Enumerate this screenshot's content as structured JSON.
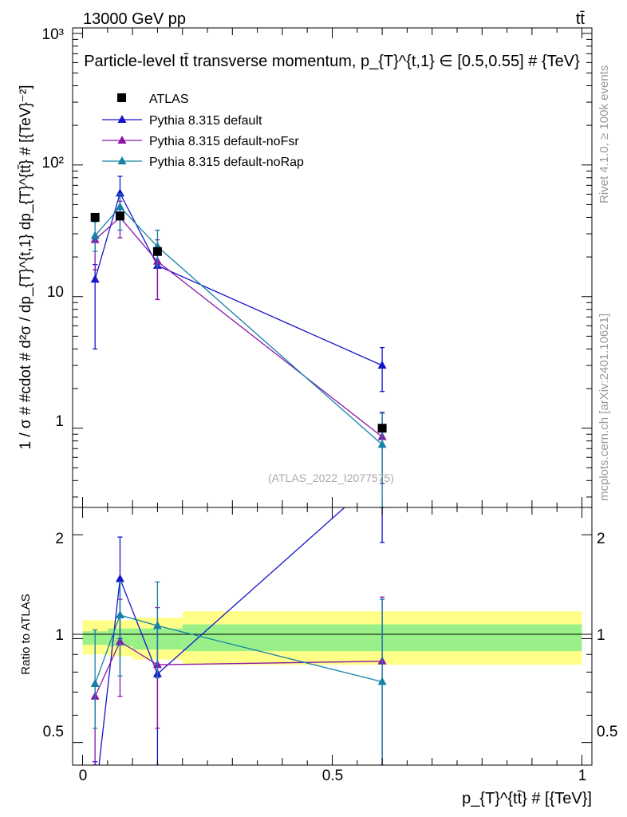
{
  "header": {
    "energy_label": "13000 GeV pp",
    "process_label": "tt̄",
    "plot_title": "Particle-level tt̄ transverse momentum, p_{T}^{t,1} ∈ [0.5,0.55] # {TeV}"
  },
  "side_labels": {
    "rivet": "Rivet 4.1.0, ≥ 100k events",
    "mcplots": "mcplots.cern.ch [arXiv:2401.10621]"
  },
  "watermark": "(ATLAS_2022_I2077575)",
  "chart_data": [
    {
      "type": "line",
      "panel": "main",
      "ylabel": "1 / σ # #cdot # d²σ / dp_{T}^{t,1} dp_{T}^{tt̄} # [{TeV}⁻²]",
      "yscale": "log",
      "ylim": [
        0.25,
        1100
      ],
      "xlim": [
        -0.02,
        1.02
      ],
      "y_tick_labels": [
        "1",
        "10",
        "10²",
        "10³"
      ],
      "legend": {
        "position": "top-left",
        "entries": [
          "ATLAS",
          "Pythia 8.315 default",
          "Pythia 8.315 default-noFsr",
          "Pythia 8.315 default-noRap"
        ]
      },
      "data": {
        "name": "ATLAS",
        "color": "#000000",
        "x": [
          0.025,
          0.075,
          0.15,
          0.6
        ],
        "y": [
          40,
          41,
          22,
          1.0
        ]
      },
      "series": [
        {
          "name": "Pythia 8.315 default",
          "color": "#1515cc",
          "x": [
            0.025,
            0.075,
            0.15,
            0.6
          ],
          "y": [
            13.5,
            61,
            17.2,
            3.0
          ],
          "yerr_lo": [
            4.0,
            41,
            9.5,
            1.9
          ],
          "yerr_hi": [
            17.5,
            82,
            24,
            4.1
          ]
        },
        {
          "name": "Pythia 8.315 default-noFsr",
          "color": "#8a16a8",
          "x": [
            0.025,
            0.075,
            0.15,
            0.6
          ],
          "y": [
            27,
            40,
            18.5,
            0.86
          ],
          "yerr_lo": [
            16,
            28,
            9.5,
            0.38
          ],
          "yerr_hi": [
            29,
            53,
            27,
            1.32
          ]
        },
        {
          "name": "Pythia 8.315 default-noRap",
          "color": "#1481a6",
          "x": [
            0.025,
            0.075,
            0.15,
            0.6
          ],
          "y": [
            29,
            48,
            24,
            0.75
          ],
          "yerr_lo": [
            22,
            32,
            17,
            0.2
          ],
          "yerr_hi": [
            37,
            60,
            32,
            1.3
          ]
        }
      ]
    },
    {
      "type": "line",
      "panel": "ratio",
      "ylabel": "Ratio to ATLAS",
      "xlabel": "p_{T}^{tt̄} # [{TeV}]",
      "yscale": "log",
      "ylim": [
        0.43,
        2.4
      ],
      "xlim": [
        -0.02,
        1.02
      ],
      "x_tick_labels": [
        "0",
        "0.5",
        "1"
      ],
      "y_tick_labels": [
        "0.5",
        "1",
        "2"
      ],
      "bands": [
        {
          "x0": 0.0,
          "x1": 0.05,
          "inner": [
            0.96,
            1.05
          ],
          "outer": [
            0.9,
            1.13
          ]
        },
        {
          "x0": 0.05,
          "x1": 0.1,
          "inner": [
            0.95,
            1.07
          ],
          "outer": [
            0.89,
            1.13
          ]
        },
        {
          "x0": 0.1,
          "x1": 0.2,
          "inner": [
            0.93,
            1.07
          ],
          "outer": [
            0.87,
            1.15
          ]
        },
        {
          "x0": 0.2,
          "x1": 1.0,
          "inner": [
            0.92,
            1.1
          ],
          "outer": [
            0.84,
            1.2
          ]
        }
      ],
      "series": [
        {
          "name": "Pythia 8.315 default",
          "color": "#1515cc",
          "x": [
            0.025,
            0.075,
            0.15,
            0.6
          ],
          "y": [
            0.34,
            1.49,
            0.79,
            3.0
          ],
          "yerr_lo": [
            0.1,
            1.0,
            0.43,
            1.9
          ],
          "yerr_hi": [
            0.44,
            1.97,
            1.09,
            4.1
          ]
        },
        {
          "name": "Pythia 8.315 default-noFsr",
          "color": "#8a16a8",
          "x": [
            0.025,
            0.075,
            0.15,
            0.6
          ],
          "y": [
            0.68,
            0.98,
            0.84,
            0.86
          ],
          "yerr_lo": [
            0.4,
            0.68,
            0.55,
            0.38
          ],
          "yerr_hi": [
            0.73,
            1.3,
            1.23,
            1.32
          ]
        },
        {
          "name": "Pythia 8.315 default-noRap",
          "color": "#1481a6",
          "x": [
            0.025,
            0.075,
            0.15,
            0.6
          ],
          "y": [
            0.74,
            1.17,
            1.09,
            0.75
          ],
          "yerr_lo": [
            0.55,
            0.78,
            0.77,
            0.2
          ],
          "yerr_hi": [
            1.06,
            1.46,
            1.46,
            1.3
          ]
        }
      ]
    }
  ]
}
